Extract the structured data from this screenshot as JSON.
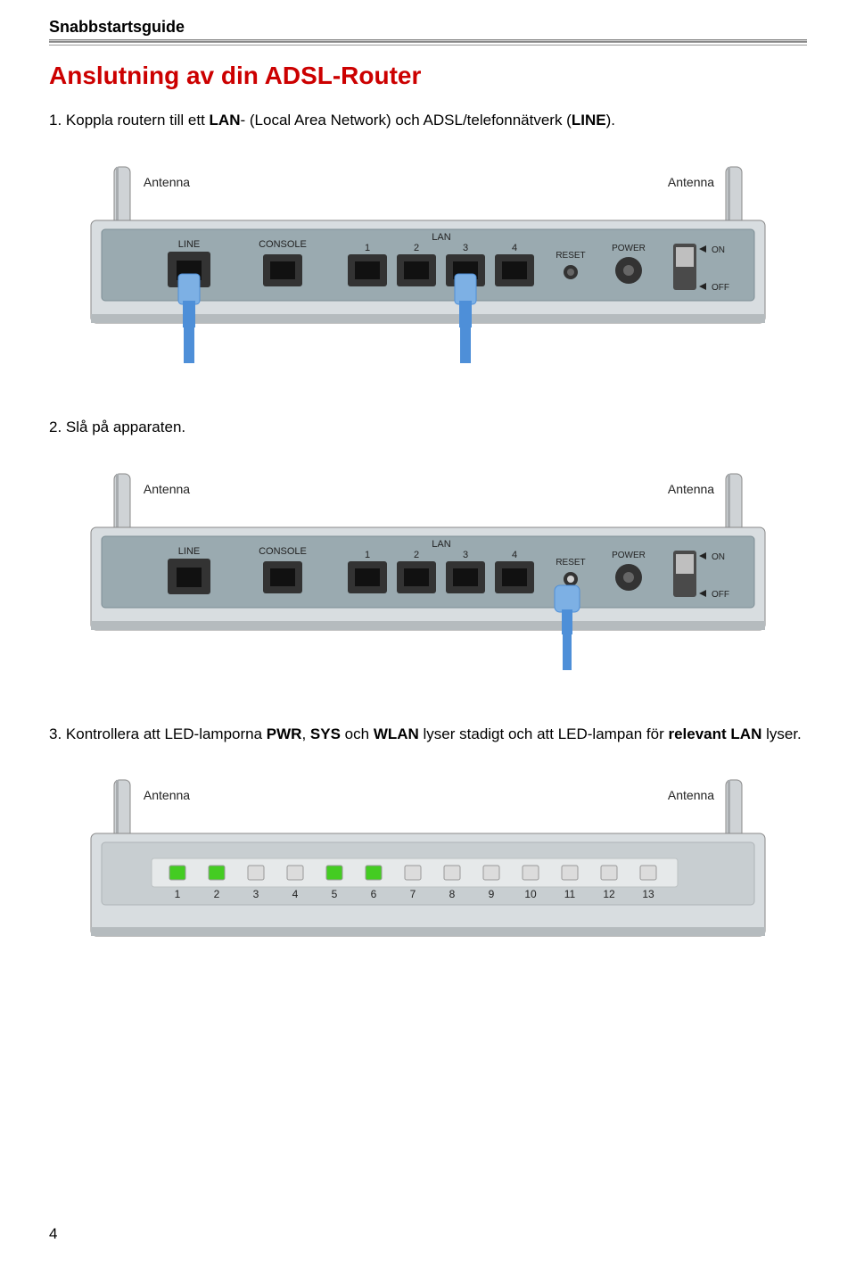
{
  "header": {
    "title": "Snabbstartsguide"
  },
  "heading": "Anslutning av din ADSL-Router",
  "steps": {
    "s1_prefix": "1. Koppla routern till ett ",
    "s1_bold1": "LAN",
    "s1_mid": "- (Local Area Network) och ADSL/telefonnätverk (",
    "s1_bold2": "LINE",
    "s1_suffix": ").",
    "s2": "2. Slå på apparaten.",
    "s3_prefix": "3. Kontrollera att LED-lamporna ",
    "s3_bold1": "PWR",
    "s3_mid1": ", ",
    "s3_bold2": "SYS",
    "s3_mid2": " och ",
    "s3_bold3": "WLAN",
    "s3_mid3": " lyser stadigt och att LED-lampan för ",
    "s3_bold4": "relevant LAN",
    "s3_suffix": " lyser."
  },
  "router_labels": {
    "antenna_left": "Antenna",
    "antenna_right": "Antenna",
    "line": "LINE",
    "console": "CONSOLE",
    "lan": "LAN",
    "lan1": "1",
    "lan2": "2",
    "lan3": "3",
    "lan4": "4",
    "reset": "RESET",
    "power": "POWER",
    "on": "ON",
    "off": "OFF"
  },
  "led_panel": {
    "numbers": [
      "1",
      "2",
      "3",
      "4",
      "5",
      "6",
      "7",
      "8",
      "9",
      "10",
      "11",
      "12",
      "13"
    ],
    "lit_color": "#44cc22",
    "unlit_color": "#dcdcdc",
    "lit_indices": [
      0,
      1,
      4,
      5
    ]
  },
  "colors": {
    "router_body_light": "#d8dde0",
    "router_body_dark": "#b5bbbe",
    "router_face": "#9aaab0",
    "router_face_dark": "#7e8f96",
    "port_dark": "#333333",
    "port_slot": "#222222",
    "antenna": "#cfd3d6",
    "antenna_shadow": "#a8acaf",
    "cable_blue": "#4e8fd8",
    "cable_blue_light": "#7db0e4",
    "switch_bg": "#4a4a4a",
    "switch_knob": "#bfbfbf",
    "label_text": "#222222",
    "label_text_light": "#555555",
    "body_outline": "#888888"
  },
  "page_number": "4"
}
